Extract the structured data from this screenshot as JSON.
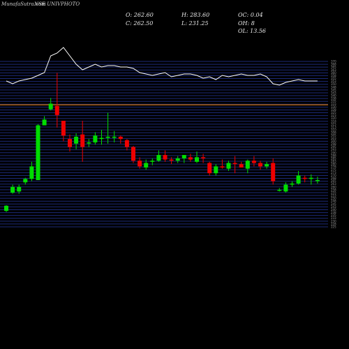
{
  "header": {
    "watermark": "MunafaSutra.com",
    "title": "NSE UNIVPHOTO"
  },
  "stats": {
    "open": "O: 262.60",
    "high": "H: 283.60",
    "oc": "OC: 0.04",
    "close": "C: 262.50",
    "low": "L: 231.25",
    "oh": "OH: 8",
    "ol": "OL: 13.56"
  },
  "colors": {
    "background": "#000000",
    "up": "#00dd00",
    "down": "#ee0000",
    "grid_band": "#1c2a78",
    "reference_line": "#ff8800",
    "indicator_line": "#ffffff"
  },
  "chart_data": {
    "type": "candlestick",
    "title": "NSE UNIVPHOTO",
    "grid": true,
    "ylim": [
      225,
      370
    ],
    "reference_level": 332,
    "candles": [
      {
        "o": 239,
        "h": 244,
        "l": 238,
        "c": 243.5
      },
      {
        "o": 255,
        "h": 262,
        "l": 254,
        "c": 260
      },
      {
        "o": 256,
        "h": 262,
        "l": 254,
        "c": 260
      },
      {
        "o": 264,
        "h": 268,
        "l": 262,
        "c": 267
      },
      {
        "o": 267,
        "h": 282,
        "l": 265,
        "c": 278
      },
      {
        "o": 266,
        "h": 315,
        "l": 266,
        "c": 314
      },
      {
        "o": 314,
        "h": 322,
        "l": 314,
        "c": 319
      },
      {
        "o": 328,
        "h": 338,
        "l": 327,
        "c": 333
      },
      {
        "o": 331,
        "h": 360,
        "l": 312,
        "c": 323
      },
      {
        "o": 318,
        "h": 318,
        "l": 300,
        "c": 305
      },
      {
        "o": 302,
        "h": 306,
        "l": 291,
        "c": 295
      },
      {
        "o": 298,
        "h": 307,
        "l": 293,
        "c": 304
      },
      {
        "o": 306,
        "h": 318,
        "l": 282,
        "c": 295
      },
      {
        "o": 299,
        "h": 302,
        "l": 295,
        "c": 299
      },
      {
        "o": 299,
        "h": 308,
        "l": 297,
        "c": 305
      },
      {
        "o": 302,
        "h": 310,
        "l": 297,
        "c": 303
      },
      {
        "o": 303,
        "h": 325,
        "l": 298,
        "c": 304
      },
      {
        "o": 304,
        "h": 309,
        "l": 299,
        "c": 304
      },
      {
        "o": 304,
        "h": 305,
        "l": 298,
        "c": 302
      },
      {
        "o": 301,
        "h": 302,
        "l": 292,
        "c": 295
      },
      {
        "o": 295,
        "h": 296,
        "l": 281,
        "c": 283
      },
      {
        "o": 283,
        "h": 286,
        "l": 276,
        "c": 278
      },
      {
        "o": 277,
        "h": 284,
        "l": 275,
        "c": 281
      },
      {
        "o": 282,
        "h": 285,
        "l": 279,
        "c": 283
      },
      {
        "o": 283,
        "h": 292,
        "l": 282,
        "c": 288
      },
      {
        "o": 288,
        "h": 292,
        "l": 282,
        "c": 284
      },
      {
        "o": 284,
        "h": 286,
        "l": 280,
        "c": 283
      },
      {
        "o": 283,
        "h": 287,
        "l": 281,
        "c": 285
      },
      {
        "o": 285,
        "h": 288,
        "l": 281,
        "c": 288
      },
      {
        "o": 286,
        "h": 289,
        "l": 282,
        "c": 284
      },
      {
        "o": 282,
        "h": 291,
        "l": 281,
        "c": 286
      },
      {
        "o": 286,
        "h": 289,
        "l": 281,
        "c": 285
      },
      {
        "o": 281,
        "h": 282,
        "l": 270,
        "c": 272
      },
      {
        "o": 272,
        "h": 280,
        "l": 270,
        "c": 278
      },
      {
        "o": 278,
        "h": 284,
        "l": 276,
        "c": 277
      },
      {
        "o": 276,
        "h": 283,
        "l": 274,
        "c": 281
      },
      {
        "o": 281,
        "h": 287,
        "l": 272,
        "c": 280
      },
      {
        "o": 280,
        "h": 282,
        "l": 277,
        "c": 277
      },
      {
        "o": 276,
        "h": 284,
        "l": 272,
        "c": 283
      },
      {
        "o": 283,
        "h": 287,
        "l": 278,
        "c": 281
      },
      {
        "o": 281,
        "h": 283,
        "l": 275,
        "c": 278
      },
      {
        "o": 278,
        "h": 282,
        "l": 276,
        "c": 280
      },
      {
        "o": 281,
        "h": 285,
        "l": 262,
        "c": 265
      },
      {
        "o": 257,
        "h": 259,
        "l": 256,
        "c": 257.5
      },
      {
        "o": 256,
        "h": 264,
        "l": 255,
        "c": 262
      },
      {
        "o": 262,
        "h": 265,
        "l": 260,
        "c": 263
      },
      {
        "o": 263,
        "h": 274,
        "l": 262,
        "c": 270
      },
      {
        "o": 268,
        "h": 270,
        "l": 264,
        "c": 267
      },
      {
        "o": 267,
        "h": 271,
        "l": 262,
        "c": 268
      },
      {
        "o": 266,
        "h": 269,
        "l": 263,
        "c": 266
      }
    ],
    "indicator": {
      "name": "",
      "values": [
        66,
        64,
        66,
        67,
        68,
        70,
        72,
        84,
        86,
        90,
        84,
        78,
        74,
        76,
        78,
        76,
        77,
        77,
        76,
        76,
        75,
        72,
        71,
        70,
        71,
        72,
        69,
        70,
        71,
        71,
        70,
        68,
        69,
        67,
        70,
        69,
        70,
        71,
        70,
        70,
        71,
        69,
        64,
        63,
        65,
        66,
        67,
        66,
        66,
        66
      ]
    }
  }
}
